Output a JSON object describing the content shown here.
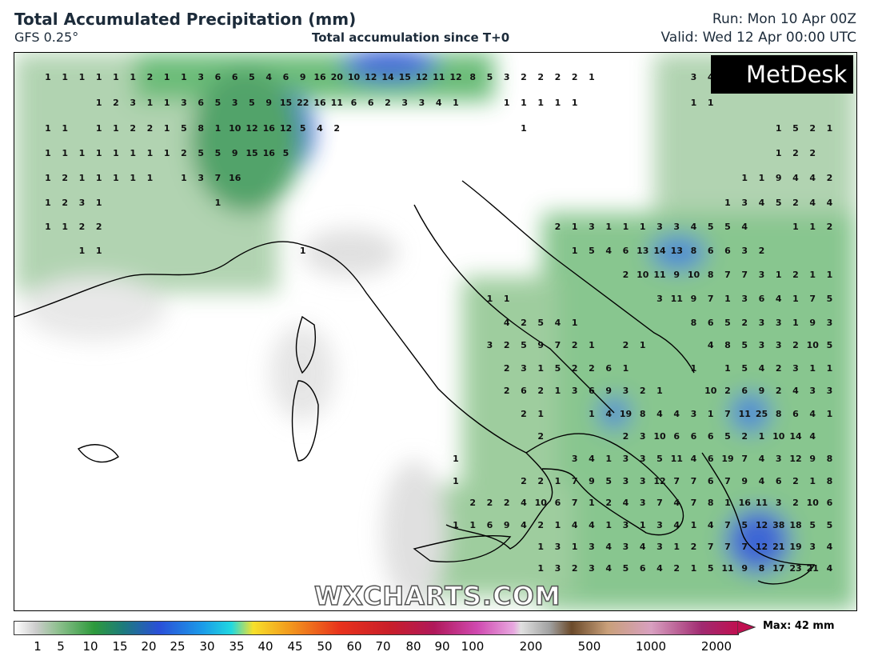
{
  "header": {
    "title": "Total Accumulated Precipitation (mm)",
    "model": "GFS 0.25°",
    "subtitle": "Total accumulation since T+0",
    "run": "Run: Mon 10 Apr 00Z",
    "valid": "Valid: Wed 12 Apr 00:00 UTC"
  },
  "logo": "MetDesk",
  "watermark": "WXCHARTS.COM",
  "max_label": "Max: 42 mm",
  "colorbar_labels": [
    1,
    5,
    10,
    15,
    20,
    25,
    30,
    35,
    40,
    45,
    50,
    60,
    70,
    80,
    90,
    100,
    200,
    500,
    1000,
    2000
  ],
  "grid_values": [
    [
      1,
      1,
      1,
      1,
      1,
      1,
      2,
      1,
      1,
      3,
      6,
      6,
      5,
      4,
      6,
      9,
      16,
      20,
      10,
      12,
      14,
      15,
      12,
      11,
      12,
      8,
      5,
      3,
      2,
      2,
      2,
      2,
      1,
      null,
      null,
      null,
      null,
      null,
      3,
      4,
      null,
      null,
      null,
      null,
      null,
      null,
      null
    ],
    [
      null,
      null,
      null,
      1,
      2,
      3,
      1,
      1,
      3,
      6,
      5,
      3,
      5,
      9,
      15,
      22,
      16,
      11,
      6,
      6,
      2,
      3,
      3,
      4,
      1,
      null,
      null,
      1,
      1,
      1,
      1,
      1,
      null,
      null,
      null,
      null,
      null,
      null,
      1,
      1,
      null,
      null,
      null,
      null,
      null,
      null,
      null
    ],
    [
      1,
      1,
      null,
      1,
      1,
      2,
      2,
      1,
      5,
      8,
      1,
      10,
      12,
      16,
      12,
      5,
      4,
      2,
      null,
      null,
      null,
      null,
      null,
      null,
      null,
      null,
      null,
      null,
      1,
      null,
      null,
      null,
      null,
      null,
      null,
      null,
      null,
      null,
      null,
      null,
      null,
      null,
      null,
      1,
      5,
      2,
      1
    ],
    [
      1,
      1,
      1,
      1,
      1,
      1,
      1,
      1,
      2,
      5,
      5,
      9,
      15,
      16,
      5,
      null,
      null,
      null,
      null,
      null,
      null,
      null,
      null,
      null,
      null,
      null,
      null,
      null,
      null,
      null,
      null,
      null,
      null,
      null,
      null,
      null,
      null,
      null,
      null,
      null,
      null,
      null,
      null,
      1,
      2,
      2,
      null
    ],
    [
      1,
      2,
      1,
      1,
      1,
      1,
      1,
      null,
      1,
      3,
      7,
      16,
      null,
      null,
      null,
      null,
      null,
      null,
      null,
      null,
      null,
      null,
      null,
      null,
      null,
      null,
      null,
      null,
      null,
      null,
      null,
      null,
      null,
      null,
      null,
      null,
      null,
      null,
      null,
      null,
      null,
      1,
      1,
      9,
      4,
      4,
      2
    ],
    [
      1,
      2,
      3,
      1,
      null,
      null,
      null,
      null,
      null,
      null,
      1,
      null,
      null,
      null,
      null,
      null,
      null,
      null,
      null,
      null,
      null,
      null,
      null,
      null,
      null,
      null,
      null,
      null,
      null,
      null,
      null,
      null,
      null,
      null,
      null,
      null,
      null,
      null,
      null,
      null,
      1,
      3,
      4,
      5,
      2,
      4,
      4
    ],
    [
      1,
      1,
      2,
      2,
      null,
      null,
      null,
      null,
      null,
      null,
      null,
      null,
      null,
      null,
      null,
      null,
      null,
      null,
      null,
      null,
      null,
      null,
      null,
      null,
      null,
      null,
      null,
      null,
      null,
      null,
      2,
      1,
      3,
      1,
      1,
      1,
      3,
      3,
      4,
      5,
      5,
      4,
      null,
      null,
      1,
      1,
      2
    ],
    [
      null,
      null,
      1,
      1,
      null,
      null,
      null,
      null,
      null,
      null,
      null,
      null,
      null,
      null,
      null,
      1,
      null,
      null,
      null,
      null,
      null,
      null,
      null,
      null,
      null,
      null,
      null,
      null,
      null,
      null,
      null,
      1,
      5,
      4,
      6,
      13,
      14,
      13,
      8,
      6,
      6,
      3,
      2,
      null,
      null,
      null,
      null
    ],
    [
      null,
      null,
      null,
      null,
      null,
      null,
      null,
      null,
      null,
      null,
      null,
      null,
      null,
      null,
      null,
      null,
      null,
      null,
      null,
      null,
      null,
      null,
      null,
      null,
      null,
      null,
      null,
      null,
      null,
      null,
      null,
      null,
      null,
      null,
      2,
      10,
      11,
      9,
      10,
      8,
      7,
      7,
      3,
      1,
      2,
      1,
      1
    ],
    [
      null,
      null,
      null,
      null,
      null,
      null,
      null,
      null,
      null,
      null,
      null,
      null,
      null,
      null,
      null,
      null,
      null,
      null,
      null,
      null,
      null,
      null,
      null,
      null,
      null,
      null,
      1,
      1,
      null,
      null,
      null,
      null,
      null,
      null,
      null,
      null,
      3,
      11,
      9,
      7,
      1,
      3,
      6,
      4,
      1,
      7,
      5
    ],
    [
      null,
      null,
      null,
      null,
      null,
      null,
      null,
      null,
      null,
      null,
      null,
      null,
      null,
      null,
      null,
      null,
      null,
      null,
      null,
      null,
      null,
      null,
      null,
      null,
      null,
      null,
      null,
      4,
      2,
      5,
      4,
      1,
      null,
      null,
      null,
      null,
      null,
      null,
      8,
      6,
      5,
      2,
      3,
      3,
      1,
      9,
      3
    ],
    [
      null,
      null,
      null,
      null,
      null,
      null,
      null,
      null,
      null,
      null,
      null,
      null,
      null,
      null,
      null,
      null,
      null,
      null,
      null,
      null,
      null,
      null,
      null,
      null,
      null,
      null,
      3,
      2,
      5,
      9,
      7,
      2,
      1,
      null,
      2,
      1,
      null,
      null,
      null,
      4,
      8,
      5,
      3,
      3,
      2,
      10,
      5
    ],
    [
      null,
      null,
      null,
      null,
      null,
      null,
      null,
      null,
      null,
      null,
      null,
      null,
      null,
      null,
      null,
      null,
      null,
      null,
      null,
      null,
      null,
      null,
      null,
      null,
      null,
      null,
      null,
      2,
      3,
      1,
      5,
      2,
      2,
      6,
      1,
      null,
      null,
      null,
      1,
      null,
      1,
      5,
      4,
      2,
      3,
      1,
      1
    ],
    [
      null,
      null,
      null,
      null,
      null,
      null,
      null,
      null,
      null,
      null,
      null,
      null,
      null,
      null,
      null,
      null,
      null,
      null,
      null,
      null,
      null,
      null,
      null,
      null,
      null,
      null,
      null,
      2,
      6,
      2,
      1,
      3,
      6,
      9,
      3,
      2,
      1,
      null,
      null,
      10,
      2,
      6,
      9,
      2,
      4,
      3,
      3
    ],
    [
      null,
      null,
      null,
      null,
      null,
      null,
      null,
      null,
      null,
      null,
      null,
      null,
      null,
      null,
      null,
      null,
      null,
      null,
      null,
      null,
      null,
      null,
      null,
      null,
      null,
      null,
      null,
      null,
      2,
      1,
      null,
      null,
      1,
      4,
      19,
      8,
      4,
      4,
      3,
      1,
      7,
      11,
      25,
      8,
      6,
      4,
      1
    ],
    [
      null,
      null,
      null,
      null,
      null,
      null,
      null,
      null,
      null,
      null,
      null,
      null,
      null,
      null,
      null,
      null,
      null,
      null,
      null,
      null,
      null,
      null,
      null,
      null,
      null,
      null,
      null,
      null,
      null,
      2,
      null,
      null,
      null,
      null,
      2,
      3,
      10,
      6,
      6,
      6,
      5,
      2,
      1,
      10,
      14,
      4,
      null
    ],
    [
      null,
      null,
      null,
      null,
      null,
      null,
      null,
      null,
      null,
      null,
      null,
      null,
      null,
      null,
      null,
      null,
      null,
      null,
      null,
      null,
      null,
      null,
      null,
      null,
      1,
      null,
      null,
      null,
      null,
      null,
      null,
      3,
      4,
      1,
      3,
      3,
      5,
      11,
      4,
      6,
      19,
      7,
      4,
      3,
      12,
      9,
      8
    ],
    [
      null,
      null,
      null,
      null,
      null,
      null,
      null,
      null,
      null,
      null,
      null,
      null,
      null,
      null,
      null,
      null,
      null,
      null,
      null,
      null,
      null,
      null,
      null,
      null,
      1,
      null,
      null,
      null,
      2,
      2,
      1,
      7,
      9,
      5,
      3,
      3,
      12,
      7,
      7,
      6,
      7,
      9,
      4,
      6,
      2,
      1,
      8
    ],
    [
      null,
      null,
      null,
      null,
      null,
      null,
      null,
      null,
      null,
      null,
      null,
      null,
      null,
      null,
      null,
      null,
      null,
      null,
      null,
      null,
      null,
      null,
      null,
      null,
      null,
      2,
      2,
      2,
      4,
      10,
      6,
      7,
      1,
      2,
      4,
      3,
      7,
      4,
      7,
      8,
      1,
      16,
      11,
      3,
      2,
      10,
      6
    ],
    [
      null,
      null,
      null,
      null,
      null,
      null,
      null,
      null,
      null,
      null,
      null,
      null,
      null,
      null,
      null,
      null,
      null,
      null,
      null,
      null,
      null,
      null,
      null,
      null,
      1,
      1,
      6,
      9,
      4,
      2,
      1,
      4,
      4,
      1,
      3,
      1,
      3,
      4,
      1,
      4,
      7,
      5,
      12,
      38,
      18,
      5,
      5
    ],
    [
      null,
      null,
      null,
      null,
      null,
      null,
      null,
      null,
      null,
      null,
      null,
      null,
      null,
      null,
      null,
      null,
      null,
      null,
      null,
      null,
      null,
      null,
      null,
      null,
      null,
      null,
      null,
      null,
      null,
      1,
      3,
      1,
      3,
      4,
      3,
      4,
      3,
      1,
      2,
      7,
      7,
      7,
      12,
      21,
      19,
      3,
      4
    ],
    [
      null,
      null,
      null,
      null,
      null,
      null,
      null,
      null,
      null,
      null,
      null,
      null,
      null,
      null,
      null,
      null,
      null,
      null,
      null,
      null,
      null,
      null,
      null,
      null,
      null,
      null,
      null,
      null,
      null,
      1,
      3,
      2,
      3,
      4,
      5,
      6,
      4,
      2,
      1,
      5,
      11,
      9,
      8,
      17,
      23,
      21,
      4
    ]
  ]
}
